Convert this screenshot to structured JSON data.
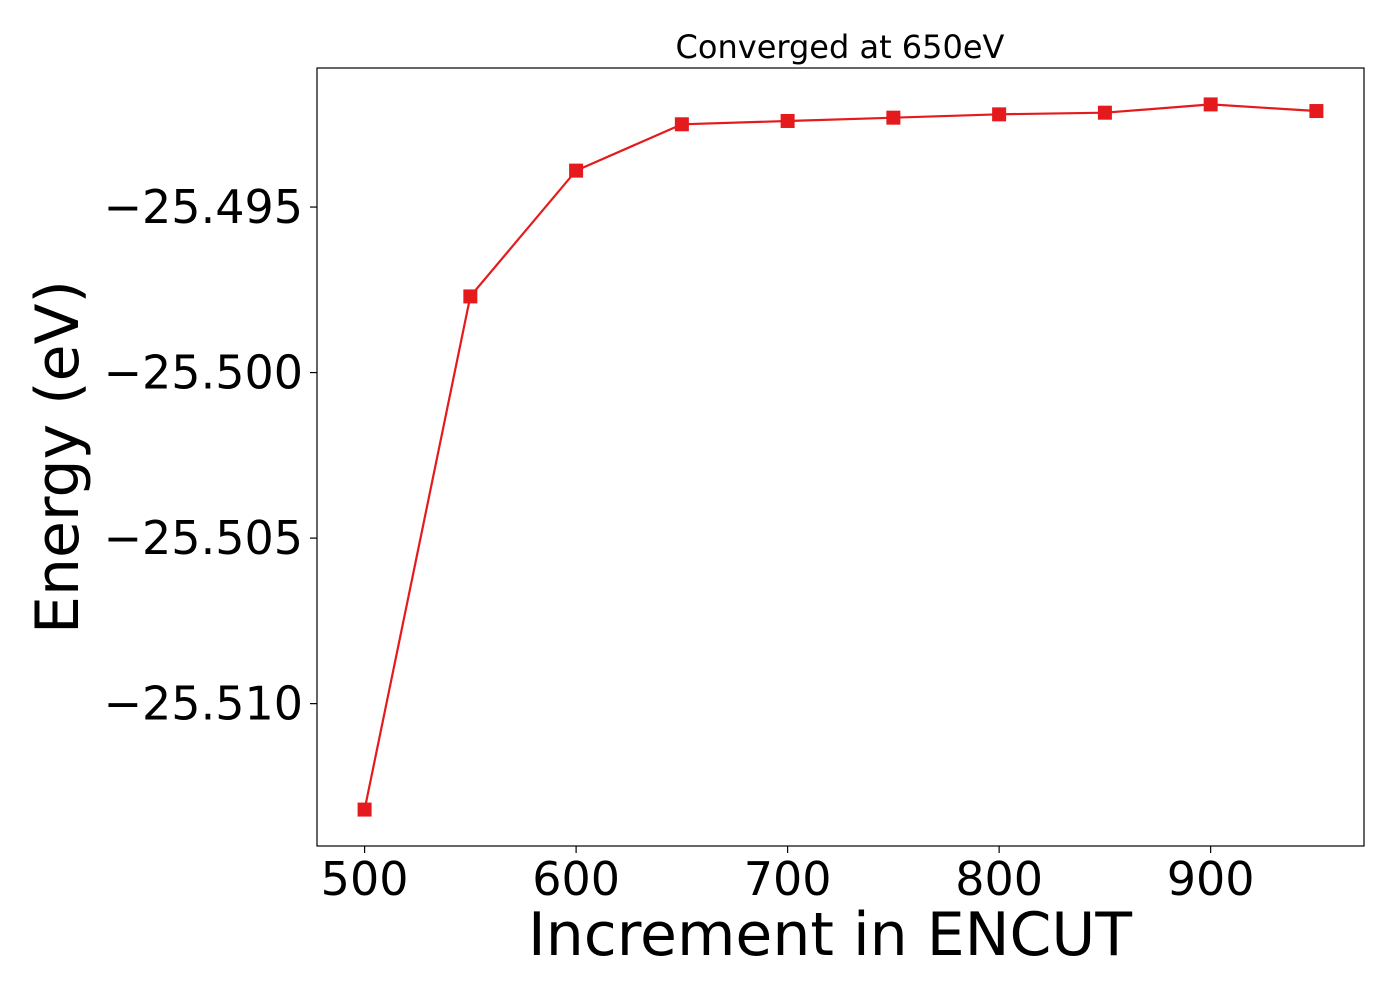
{
  "chart_data": {
    "type": "line",
    "title": "Converged at 650eV",
    "xlabel": "Increment in ENCUT",
    "ylabel": "Energy (eV)",
    "x": [
      500,
      550,
      600,
      650,
      700,
      750,
      800,
      850,
      900,
      950
    ],
    "series": [
      {
        "values": [
          -25.5132,
          -25.4977,
          -25.4939,
          -25.4925,
          -25.4924,
          -25.4923,
          -25.4922,
          -25.49215,
          -25.4919,
          -25.4921
        ],
        "color": "#e41a1c",
        "marker": "square"
      }
    ],
    "xlim": [
      477.5,
      972.5
    ],
    "ylim": [
      -25.5143,
      -25.4908
    ],
    "xticks": [
      500,
      600,
      700,
      800,
      900
    ],
    "xtick_labels": [
      "500",
      "600",
      "700",
      "800",
      "900"
    ],
    "yticks": [
      -25.495,
      -25.5,
      -25.505,
      -25.51
    ],
    "ytick_labels": [
      "−25.495",
      "−25.500",
      "−25.505",
      "−25.510"
    ],
    "grid": false,
    "legend": "none"
  }
}
